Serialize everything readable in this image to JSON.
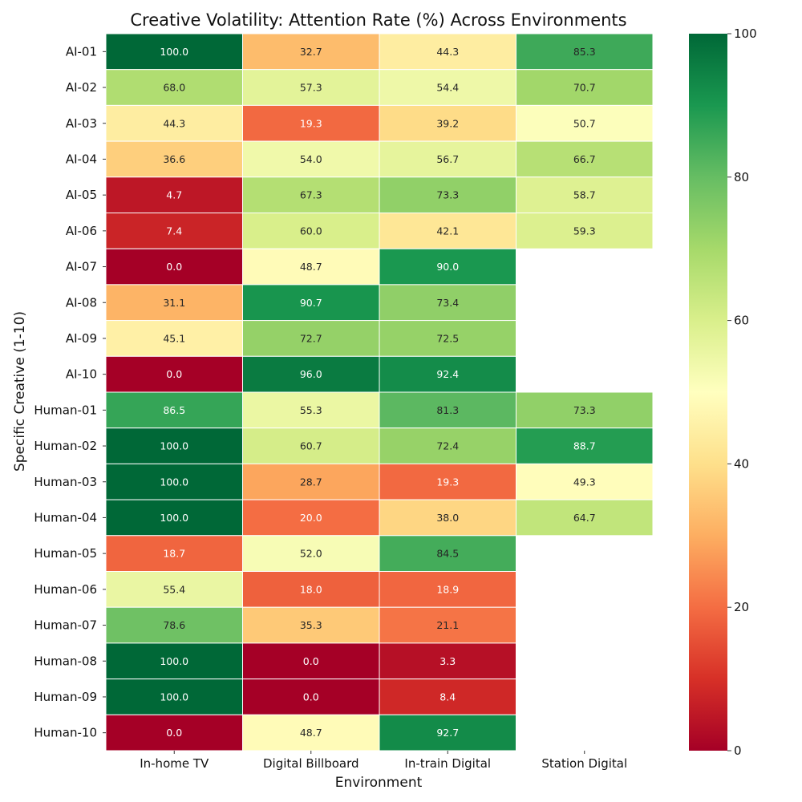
{
  "chart_data": {
    "type": "heatmap",
    "title": "Creative Volatility: Attention Rate (%) Across Environments",
    "xlabel": "Environment",
    "ylabel": "Specific Creative (1-10)",
    "x_categories": [
      "In-home TV",
      "Digital Billboard",
      "In-train Digital",
      "Station Digital"
    ],
    "y_categories": [
      "AI-01",
      "AI-02",
      "AI-03",
      "AI-04",
      "AI-05",
      "AI-06",
      "AI-07",
      "AI-08",
      "AI-09",
      "AI-10",
      "Human-01",
      "Human-02",
      "Human-03",
      "Human-04",
      "Human-05",
      "Human-06",
      "Human-07",
      "Human-08",
      "Human-09",
      "Human-10"
    ],
    "values": [
      [
        100.0,
        32.7,
        44.3,
        85.3
      ],
      [
        68.0,
        57.3,
        54.4,
        70.7
      ],
      [
        44.3,
        19.3,
        39.2,
        50.7
      ],
      [
        36.6,
        54.0,
        56.7,
        66.7
      ],
      [
        4.7,
        67.3,
        73.3,
        58.7
      ],
      [
        7.4,
        60.0,
        42.1,
        59.3
      ],
      [
        0.0,
        48.7,
        90.0,
        null
      ],
      [
        31.1,
        90.7,
        73.4,
        null
      ],
      [
        45.1,
        72.7,
        72.5,
        null
      ],
      [
        0.0,
        96.0,
        92.4,
        null
      ],
      [
        86.5,
        55.3,
        81.3,
        73.3
      ],
      [
        100.0,
        60.7,
        72.4,
        88.7
      ],
      [
        100.0,
        28.7,
        19.3,
        49.3
      ],
      [
        100.0,
        20.0,
        38.0,
        64.7
      ],
      [
        18.7,
        52.0,
        84.5,
        null
      ],
      [
        55.4,
        18.0,
        18.9,
        null
      ],
      [
        78.6,
        35.3,
        21.1,
        null
      ],
      [
        100.0,
        0.0,
        3.3,
        null
      ],
      [
        100.0,
        0.0,
        8.4,
        null
      ],
      [
        0.0,
        48.7,
        92.7,
        null
      ]
    ],
    "colormap": "RdYlGn",
    "vmin": 0,
    "vmax": 100,
    "colorbar_ticks": [
      0,
      20,
      40,
      60,
      80,
      100
    ],
    "value_format": "0.1f"
  }
}
